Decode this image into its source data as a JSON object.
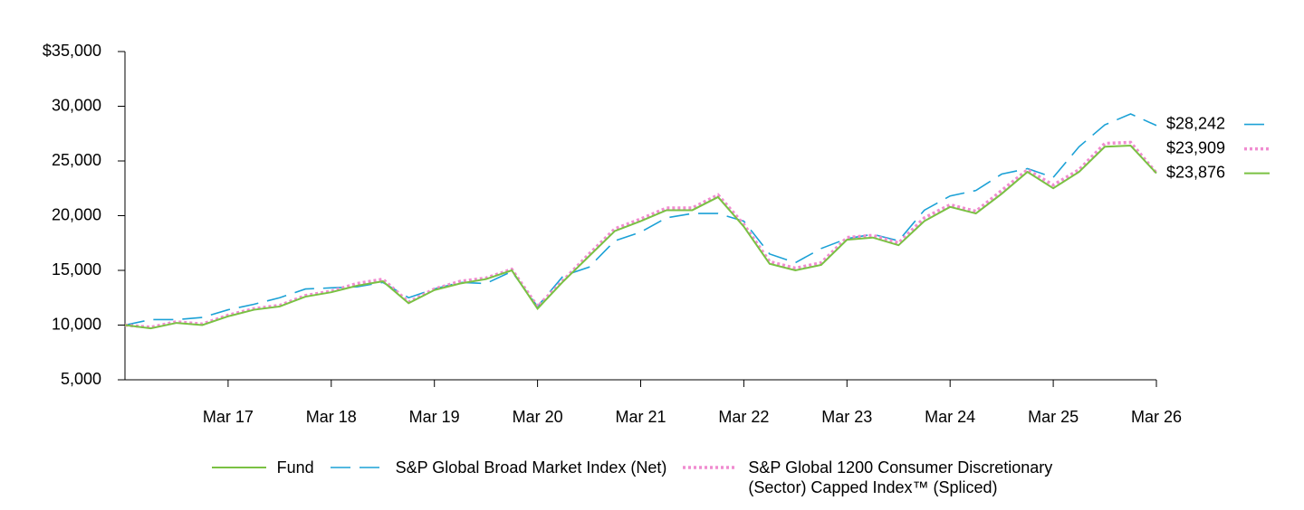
{
  "chart_data": {
    "type": "line",
    "categories": [
      null,
      null,
      null,
      null,
      "Mar 17",
      null,
      null,
      null,
      "Mar 18",
      null,
      null,
      null,
      "Mar 19",
      null,
      null,
      null,
      "Mar 20",
      null,
      null,
      null,
      "Mar 21",
      null,
      null,
      null,
      "Mar 22",
      null,
      null,
      null,
      "Mar 23",
      null,
      null,
      null,
      "Mar 24",
      null,
      null,
      null,
      "Mar 25",
      null,
      null,
      null,
      "Mar 26"
    ],
    "ylim": [
      5000,
      35000
    ],
    "yticks": [
      {
        "value": 5000,
        "label": "5,000"
      },
      {
        "value": 10000,
        "label": "10,000"
      },
      {
        "value": 15000,
        "label": "15,000"
      },
      {
        "value": 20000,
        "label": "20,000"
      },
      {
        "value": 25000,
        "label": "25,000"
      },
      {
        "value": 30000,
        "label": "30,000"
      },
      {
        "value": 35000,
        "label": "$35,000"
      }
    ],
    "series": [
      {
        "name": "Fund",
        "color": "#7ac143",
        "style": "solid",
        "values": [
          10000,
          9700,
          10200,
          10000,
          10800,
          11400,
          11700,
          12600,
          13000,
          13600,
          14000,
          12000,
          13200,
          13800,
          14200,
          15000,
          11500,
          14000,
          16300,
          18600,
          19500,
          20500,
          20500,
          21700,
          19000,
          15600,
          15000,
          15500,
          17800,
          18000,
          17300,
          19500,
          20800,
          20200,
          22000,
          24000,
          22500,
          24000,
          26300,
          26400,
          23876
        ],
        "value_labels": [
          null,
          null,
          null,
          null,
          null,
          null,
          null,
          null,
          null,
          null,
          null,
          null,
          null,
          null,
          null,
          null,
          null,
          null,
          null,
          null,
          null,
          null,
          null,
          null,
          null,
          null,
          null,
          null,
          null,
          null,
          null,
          null,
          null,
          null,
          null,
          null,
          null,
          null,
          null,
          null,
          "$23,876"
        ]
      },
      {
        "name": "S&P Global Broad Market Index (Net)",
        "color": "#1ba1d6",
        "style": "dashed",
        "values": [
          10000,
          10500,
          10500,
          10700,
          11400,
          11900,
          12500,
          13300,
          13400,
          13500,
          13900,
          12500,
          13300,
          13900,
          13800,
          14900,
          11700,
          14500,
          15300,
          17700,
          18500,
          19800,
          20200,
          20200,
          19500,
          16500,
          15700,
          17000,
          17900,
          18300,
          17700,
          20500,
          21800,
          22300,
          23800,
          24300,
          23500,
          26300,
          28300,
          29300,
          28242
        ],
        "value_labels": [
          null,
          null,
          null,
          null,
          null,
          null,
          null,
          null,
          null,
          null,
          null,
          null,
          null,
          null,
          null,
          null,
          null,
          null,
          null,
          null,
          null,
          null,
          null,
          null,
          null,
          null,
          null,
          null,
          null,
          null,
          null,
          null,
          null,
          null,
          null,
          null,
          null,
          null,
          null,
          null,
          "$28,242"
        ]
      },
      {
        "name": "S&P Global 1200 Consumer Discretionary (Sector) Capped Index™ (Spliced)",
        "color": "#f08cd0",
        "style": "dotted",
        "values": [
          10000,
          9800,
          10300,
          10100,
          10900,
          11500,
          11800,
          12700,
          13100,
          13800,
          14200,
          12100,
          13300,
          14000,
          14300,
          15100,
          11700,
          14100,
          16500,
          18800,
          19700,
          20700,
          20700,
          21900,
          19200,
          15800,
          15200,
          15700,
          18000,
          18200,
          17500,
          19800,
          21000,
          20400,
          22300,
          24200,
          22800,
          24200,
          26600,
          26700,
          23909
        ],
        "value_labels": [
          null,
          null,
          null,
          null,
          null,
          null,
          null,
          null,
          null,
          null,
          null,
          null,
          null,
          null,
          null,
          null,
          null,
          null,
          null,
          null,
          null,
          null,
          null,
          null,
          null,
          null,
          null,
          null,
          null,
          null,
          null,
          null,
          null,
          null,
          null,
          null,
          null,
          null,
          null,
          null,
          "$23,909"
        ]
      }
    ]
  }
}
